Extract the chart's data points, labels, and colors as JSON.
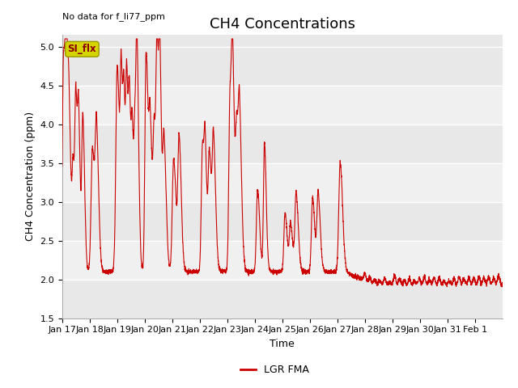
{
  "title": "CH4 Concentrations",
  "xlabel": "Time",
  "ylabel": "CH4 Concentration (ppm)",
  "top_left_note": "No data for f_li77_ppm",
  "legend_label": "LGR FMA",
  "legend_color": "#cc0000",
  "line_color": "#cc0000",
  "background_color": "#ffffff",
  "plot_bg_color": "#e8e8e8",
  "band_color_light": "#f0f0f0",
  "band_color_dark": "#dcdcdc",
  "ylim": [
    1.5,
    5.15
  ],
  "yticks": [
    1.5,
    2.0,
    2.5,
    3.0,
    3.5,
    4.0,
    4.5,
    5.0
  ],
  "xtick_labels": [
    "Jan 17",
    "Jan 18",
    "Jan 19",
    "Jan 20",
    "Jan 21",
    "Jan 22",
    "Jan 23",
    "Jan 24",
    "Jan 25",
    "Jan 26",
    "Jan 27",
    "Jan 28",
    "Jan 29",
    "Jan 30",
    "Jan 31",
    "Feb 1"
  ],
  "annotation_box_text": "SI_flx",
  "annotation_box_color": "#d4d400",
  "annotation_box_text_color": "#8b0000",
  "title_fontsize": 13,
  "axis_label_fontsize": 9,
  "tick_fontsize": 8,
  "note_fontsize": 8
}
